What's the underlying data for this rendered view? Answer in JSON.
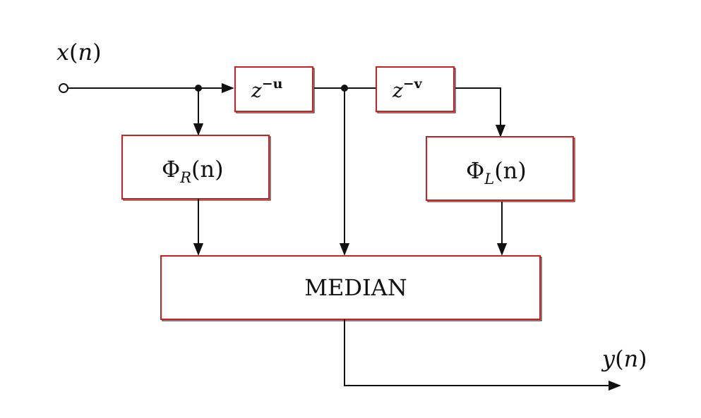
{
  "input": {
    "var": "x",
    "arg": "n"
  },
  "output": {
    "var": "y",
    "arg": "n"
  },
  "delay1": {
    "base": "z",
    "exp": "−u"
  },
  "delay2": {
    "base": "z",
    "exp": "−v"
  },
  "phi_r": {
    "sym": "Φ",
    "sub": "R",
    "arg": "(n)"
  },
  "phi_l": {
    "sym": "Φ",
    "sub": "L",
    "arg": "(n)"
  },
  "median": {
    "label": "MEDIAN"
  },
  "colors": {
    "box_border": "#cc1f1f",
    "line": "#111111"
  }
}
